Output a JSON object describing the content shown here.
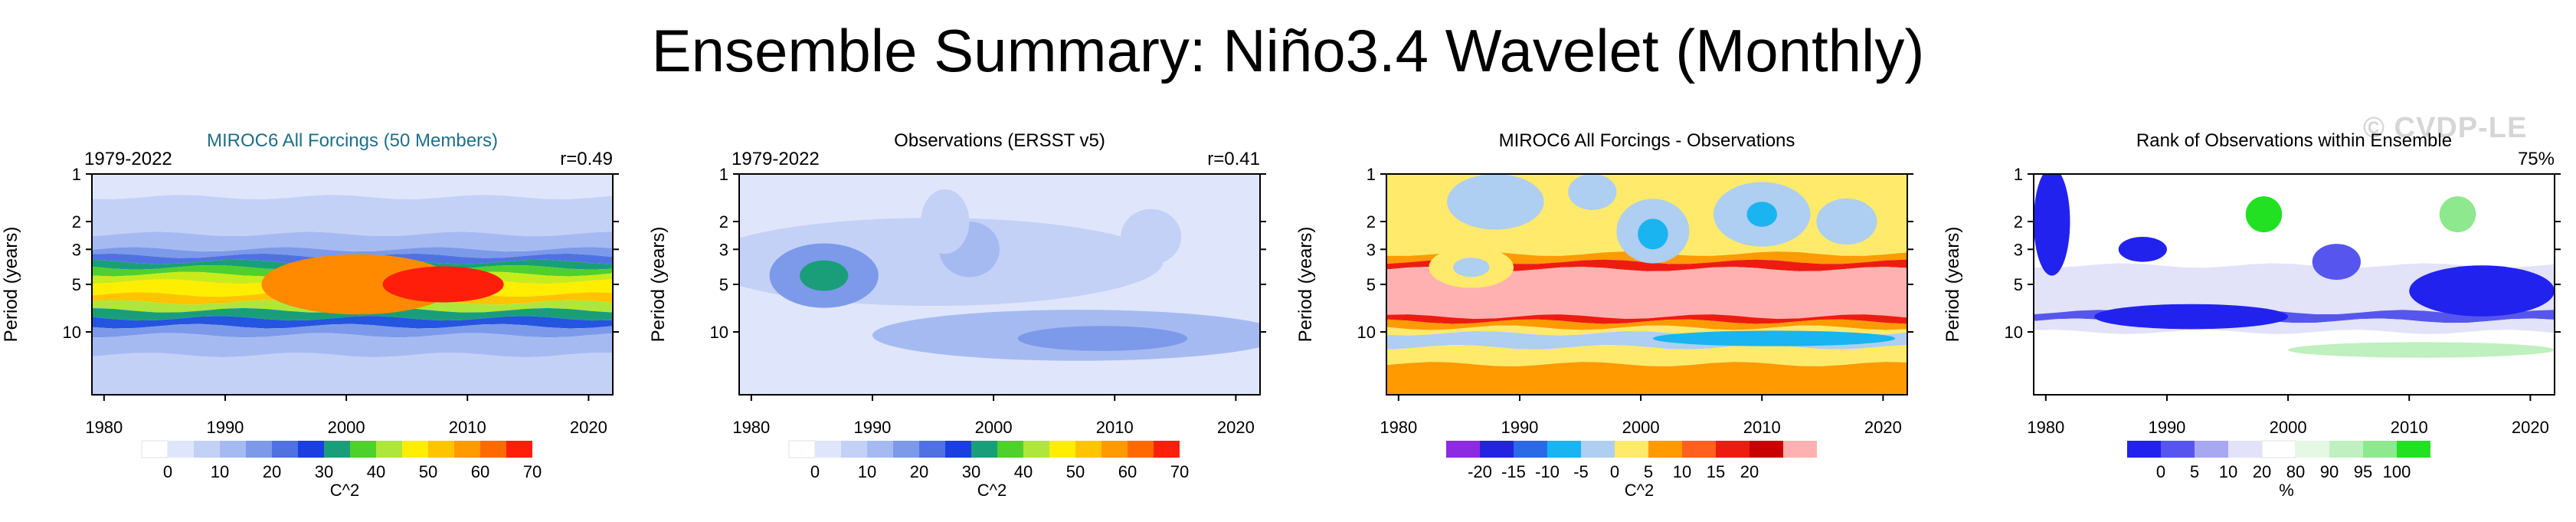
{
  "title": "Ensemble Summary: Niño3.4 Wavelet (Monthly)",
  "watermark": "© CVDP-LE",
  "chart_data": [
    {
      "type": "heatmap",
      "title": "MIROC6 All Forcings (50 Members)",
      "title_color": "#1f6f8b",
      "left_label": "1979-2022",
      "right_label": "r=0.49",
      "xlabel": "",
      "ylabel": "Period (years)",
      "xlim": [
        1979,
        2022
      ],
      "ylim": [
        1,
        25
      ],
      "x_ticks": [
        1980,
        1990,
        2000,
        2010,
        2020
      ],
      "y_ticks": [
        1,
        2,
        3,
        5,
        10
      ],
      "bands": [
        {
          "from": 1.0,
          "to": 1.4,
          "color": "#dfe6fb"
        },
        {
          "from": 1.4,
          "to": 2.4,
          "color": "#c4d1f6"
        },
        {
          "from": 2.4,
          "to": 3.0,
          "color": "#a6baf2"
        },
        {
          "from": 3.0,
          "to": 3.3,
          "color": "#7c9ae9"
        },
        {
          "from": 3.3,
          "to": 3.6,
          "color": "#4f72e0"
        },
        {
          "from": 3.6,
          "to": 3.9,
          "color": "#1a9e7a"
        },
        {
          "from": 3.9,
          "to": 4.3,
          "color": "#4fd02c"
        },
        {
          "from": 4.3,
          "to": 4.8,
          "color": "#c8ec1a"
        },
        {
          "from": 4.8,
          "to": 5.8,
          "color": "#ffee00"
        },
        {
          "from": 5.8,
          "to": 6.5,
          "color": "#ffc400"
        },
        {
          "from": 6.5,
          "to": 7.3,
          "color": "#aee63c"
        },
        {
          "from": 7.3,
          "to": 8.2,
          "color": "#1a9e7a"
        },
        {
          "from": 8.2,
          "to": 9.2,
          "color": "#2454e0"
        },
        {
          "from": 9.2,
          "to": 10.5,
          "color": "#7c9ae9"
        },
        {
          "from": 10.5,
          "to": 14.0,
          "color": "#a6baf2"
        },
        {
          "from": 14.0,
          "to": 25.0,
          "color": "#c4d1f6"
        }
      ],
      "blobs": [
        {
          "x": 2001,
          "y": 5.0,
          "w": 16,
          "h": 1.55,
          "color": "#ff8a00"
        },
        {
          "x": 2008,
          "y": 5.0,
          "w": 10,
          "h": 1.3,
          "color": "#ff1e0a"
        }
      ],
      "colorbar": {
        "colors": [
          "#ffffff",
          "#dfe6fb",
          "#c4d1f6",
          "#a6baf2",
          "#7c9ae9",
          "#4f72e0",
          "#1a3ee0",
          "#1a9e7a",
          "#4fd02c",
          "#aee63c",
          "#ffee00",
          "#ffc400",
          "#ff9a00",
          "#ff6a00",
          "#ff1e0a"
        ],
        "labels": [
          "0",
          "10",
          "20",
          "30",
          "40",
          "50",
          "60",
          "70"
        ],
        "label_positions": [
          1,
          3,
          5,
          7,
          9,
          11,
          13,
          15
        ],
        "unit": "C^2"
      }
    },
    {
      "type": "heatmap",
      "title": "Observations (ERSST v5)",
      "title_color": "#000000",
      "left_label": "1979-2022",
      "right_label": "r=0.41",
      "xlabel": "",
      "ylabel": "Period (years)",
      "xlim": [
        1979,
        2022
      ],
      "ylim": [
        1,
        25
      ],
      "x_ticks": [
        1980,
        1990,
        2000,
        2010,
        2020
      ],
      "y_ticks": [
        1,
        2,
        3,
        5,
        10
      ],
      "bands": [
        {
          "from": 1.0,
          "to": 25.0,
          "color": "#dfe6fb"
        }
      ],
      "blobs": [
        {
          "x": 1995,
          "y": 3.6,
          "w": 38,
          "h": 1.9,
          "color": "#c4d1f6"
        },
        {
          "x": 1986,
          "y": 4.4,
          "w": 9,
          "h": 1.6,
          "color": "#7c9ae9"
        },
        {
          "x": 1986,
          "y": 4.4,
          "w": 4,
          "h": 1.25,
          "color": "#1a9e7a"
        },
        {
          "x": 1998,
          "y": 3.0,
          "w": 5,
          "h": 1.5,
          "color": "#a6baf2"
        },
        {
          "x": 1996,
          "y": 2.0,
          "w": 4,
          "h": 1.6,
          "color": "#c4d1f6"
        },
        {
          "x": 2013,
          "y": 2.5,
          "w": 5,
          "h": 1.5,
          "color": "#c4d1f6"
        },
        {
          "x": 2007,
          "y": 10.5,
          "w": 34,
          "h": 1.45,
          "color": "#a6baf2"
        },
        {
          "x": 2009,
          "y": 11.0,
          "w": 14,
          "h": 1.2,
          "color": "#7c9ae9"
        }
      ],
      "colorbar": {
        "colors": [
          "#ffffff",
          "#dfe6fb",
          "#c4d1f6",
          "#a6baf2",
          "#7c9ae9",
          "#4f72e0",
          "#1a3ee0",
          "#1a9e7a",
          "#4fd02c",
          "#aee63c",
          "#ffee00",
          "#ffc400",
          "#ff9a00",
          "#ff6a00",
          "#ff1e0a"
        ],
        "labels": [
          "0",
          "10",
          "20",
          "30",
          "40",
          "50",
          "60",
          "70"
        ],
        "label_positions": [
          1,
          3,
          5,
          7,
          9,
          11,
          13,
          15
        ],
        "unit": "C^2"
      }
    },
    {
      "type": "heatmap",
      "title": "MIROC6 All Forcings - Observations",
      "title_color": "#000000",
      "left_label": "",
      "right_label": "",
      "xlabel": "",
      "ylabel": "Period (years)",
      "xlim": [
        1979,
        2022
      ],
      "ylim": [
        1,
        25
      ],
      "x_ticks": [
        1980,
        1990,
        2000,
        2010,
        2020
      ],
      "y_ticks": [
        1,
        2,
        3,
        5,
        10
      ],
      "bands": [
        {
          "from": 1.0,
          "to": 3.2,
          "color": "#ffea6b"
        },
        {
          "from": 3.2,
          "to": 3.6,
          "color": "#ff9a00"
        },
        {
          "from": 3.6,
          "to": 4.0,
          "color": "#ee1c10"
        },
        {
          "from": 4.0,
          "to": 8.0,
          "color": "#ffb1b1"
        },
        {
          "from": 8.0,
          "to": 8.6,
          "color": "#ee1c10"
        },
        {
          "from": 8.6,
          "to": 9.4,
          "color": "#ff9a00"
        },
        {
          "from": 9.4,
          "to": 10.2,
          "color": "#ffea6b"
        },
        {
          "from": 10.2,
          "to": 12.5,
          "color": "#aecef2"
        },
        {
          "from": 12.5,
          "to": 16.0,
          "color": "#ffea6b"
        },
        {
          "from": 16.0,
          "to": 25.0,
          "color": "#ff9a00"
        }
      ],
      "blobs": [
        {
          "x": 1988,
          "y": 1.5,
          "w": 8,
          "h": 1.5,
          "color": "#aecef2"
        },
        {
          "x": 1996,
          "y": 1.3,
          "w": 4,
          "h": 1.3,
          "color": "#aecef2"
        },
        {
          "x": 2001,
          "y": 2.3,
          "w": 6,
          "h": 1.6,
          "color": "#aecef2"
        },
        {
          "x": 2001,
          "y": 2.4,
          "w": 2.5,
          "h": 1.25,
          "color": "#1ab4f0"
        },
        {
          "x": 2010,
          "y": 1.8,
          "w": 8,
          "h": 1.6,
          "color": "#aecef2"
        },
        {
          "x": 2010,
          "y": 1.8,
          "w": 2.5,
          "h": 1.2,
          "color": "#1ab4f0"
        },
        {
          "x": 2017,
          "y": 2.0,
          "w": 5,
          "h": 1.4,
          "color": "#aecef2"
        },
        {
          "x": 1986,
          "y": 3.9,
          "w": 7,
          "h": 1.35,
          "color": "#ffea6b"
        },
        {
          "x": 1986,
          "y": 3.9,
          "w": 3,
          "h": 1.15,
          "color": "#aecef2"
        },
        {
          "x": 2011,
          "y": 11.0,
          "w": 20,
          "h": 1.12,
          "color": "#1ab4f0"
        }
      ],
      "colorbar": {
        "colors": [
          "#8c2be0",
          "#2424e0",
          "#2a6ae6",
          "#1ab4f0",
          "#aecef2",
          "#ffea6b",
          "#ff9a00",
          "#ff6020",
          "#ee1c10",
          "#c80000",
          "#ffb1b1"
        ],
        "labels": [
          "-20",
          "-15",
          "-10",
          "-5",
          "0",
          "5",
          "10",
          "15",
          "20"
        ],
        "label_positions": [
          1,
          2,
          3,
          4,
          5,
          6,
          7,
          8,
          9
        ],
        "unit": "C^2"
      }
    },
    {
      "type": "heatmap",
      "title": "Rank of Observations within Ensemble",
      "title_color": "#000000",
      "left_label": "",
      "right_label": "75%",
      "xlabel": "",
      "ylabel": "Period (years)",
      "xlim": [
        1979,
        2022
      ],
      "ylim": [
        1,
        25
      ],
      "x_ticks": [
        1980,
        1990,
        2000,
        2010,
        2020
      ],
      "y_ticks": [
        1,
        2,
        3,
        5,
        10
      ],
      "bands": [
        {
          "from": 1.0,
          "to": 3.8,
          "color": "#ffffff"
        },
        {
          "from": 3.8,
          "to": 7.5,
          "color": "#e2e2f8"
        },
        {
          "from": 7.5,
          "to": 8.5,
          "color": "#5656ee"
        },
        {
          "from": 8.5,
          "to": 10.0,
          "color": "#e2e2f8"
        },
        {
          "from": 10.0,
          "to": 25.0,
          "color": "#ffffff"
        }
      ],
      "blobs": [
        {
          "x": 1980.5,
          "y": 2.0,
          "w": 3,
          "h": 2.2,
          "color": "#2222ee"
        },
        {
          "x": 2016,
          "y": 5.5,
          "w": 12,
          "h": 1.45,
          "color": "#2222ee"
        },
        {
          "x": 2004,
          "y": 3.6,
          "w": 4,
          "h": 1.3,
          "color": "#5656ee"
        },
        {
          "x": 1998,
          "y": 1.8,
          "w": 3,
          "h": 1.3,
          "color": "#22e022"
        },
        {
          "x": 2014,
          "y": 1.8,
          "w": 3,
          "h": 1.3,
          "color": "#8ee88e"
        },
        {
          "x": 2011,
          "y": 13.0,
          "w": 22,
          "h": 1.12,
          "color": "#bff0bf"
        },
        {
          "x": 1988,
          "y": 3.0,
          "w": 4,
          "h": 1.2,
          "color": "#2222ee"
        },
        {
          "x": 1992,
          "y": 8.0,
          "w": 16,
          "h": 1.2,
          "color": "#2222ee"
        }
      ],
      "colorbar": {
        "colors": [
          "#2222ee",
          "#5656ee",
          "#a8a8f2",
          "#e2e2f8",
          "#ffffff",
          "#e4f8e4",
          "#bff0bf",
          "#8ee88e",
          "#22e022"
        ],
        "labels": [
          "0",
          "5",
          "10",
          "20",
          "80",
          "90",
          "95",
          "100"
        ],
        "label_positions": [
          1,
          2,
          3,
          4,
          5,
          6,
          7,
          8
        ],
        "unit": "%"
      }
    }
  ]
}
